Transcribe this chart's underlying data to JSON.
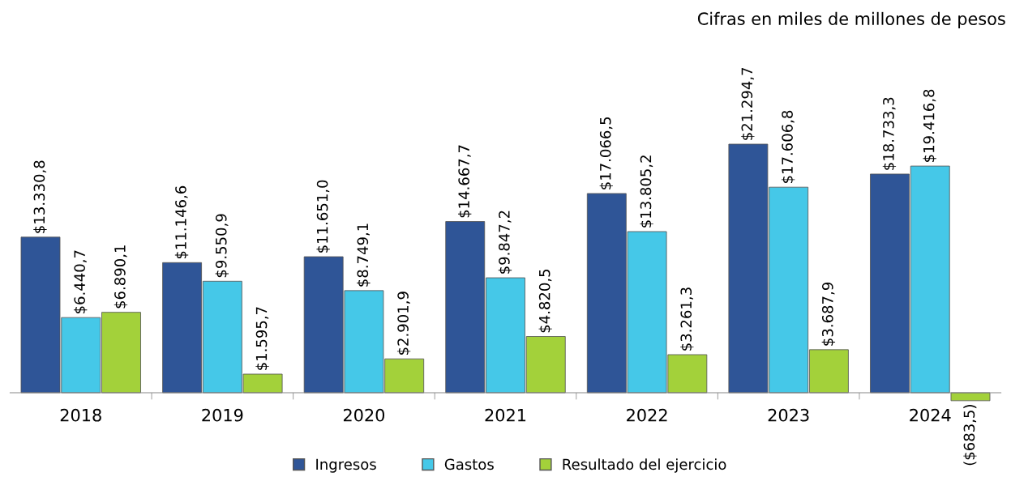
{
  "chart_data": {
    "type": "bar",
    "annotations": [
      "Cifras en miles de millones de pesos"
    ],
    "categories": [
      "2018",
      "2019",
      "2020",
      "2021",
      "2022",
      "2023",
      "2024"
    ],
    "series": [
      {
        "name": "Ingresos",
        "color": "#2f5597",
        "values": [
          13330.8,
          11146.6,
          11651.0,
          14667.7,
          17066.5,
          21294.7,
          18733.3
        ],
        "value_labels": [
          "$13.330,8",
          "$11.146,6",
          "$11.651,0",
          "$14.667,7",
          "$17.066,5",
          "$21.294,7",
          "$18.733,3"
        ]
      },
      {
        "name": "Gastos",
        "color": "#45c8e8",
        "values": [
          6440.7,
          9550.9,
          8749.1,
          9847.2,
          13805.2,
          17606.8,
          19416.8
        ],
        "value_labels": [
          "$6.440,7",
          "$9.550,9",
          "$8.749,1",
          "$9.847,2",
          "$13.805,2",
          "$17.606,8",
          "$19.416,8"
        ]
      },
      {
        "name": "Resultado del ejercicio",
        "color": "#a3d13a",
        "values": [
          6890.1,
          1595.7,
          2901.9,
          4820.5,
          3261.3,
          3687.9,
          -683.5
        ],
        "value_labels": [
          "$6.890,1",
          "$1.595,7",
          "$2.901,9",
          "$4.820,5",
          "$3.261,3",
          "$3.687,9",
          "($683,5)"
        ]
      }
    ],
    "legend": "bottom",
    "grid": false
  }
}
